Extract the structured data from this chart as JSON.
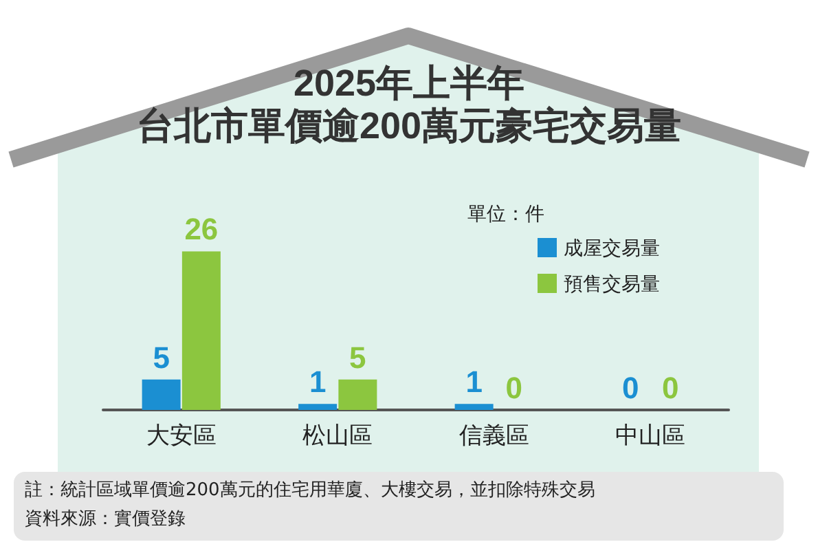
{
  "chart_data": {
    "type": "bar",
    "title": "2025年上半年",
    "subtitle": "台北市單價逾200萬元豪宅交易量",
    "categories": [
      "大安區",
      "松山區",
      "信義區",
      "中山區"
    ],
    "series": [
      {
        "name": "成屋交易量",
        "color": "#1b8fd2",
        "values": [
          5,
          1,
          1,
          0
        ]
      },
      {
        "name": "預售交易量",
        "color": "#8cc63f",
        "values": [
          26,
          5,
          0,
          0
        ]
      }
    ],
    "data_labels": true,
    "legend": "top right",
    "annotations": [
      "單位：件",
      "註：統計區域單價逾200萬元的住宅用華廈、大樓交易，並扣除特殊交易",
      "資料來源：實價登錄"
    ]
  }
}
